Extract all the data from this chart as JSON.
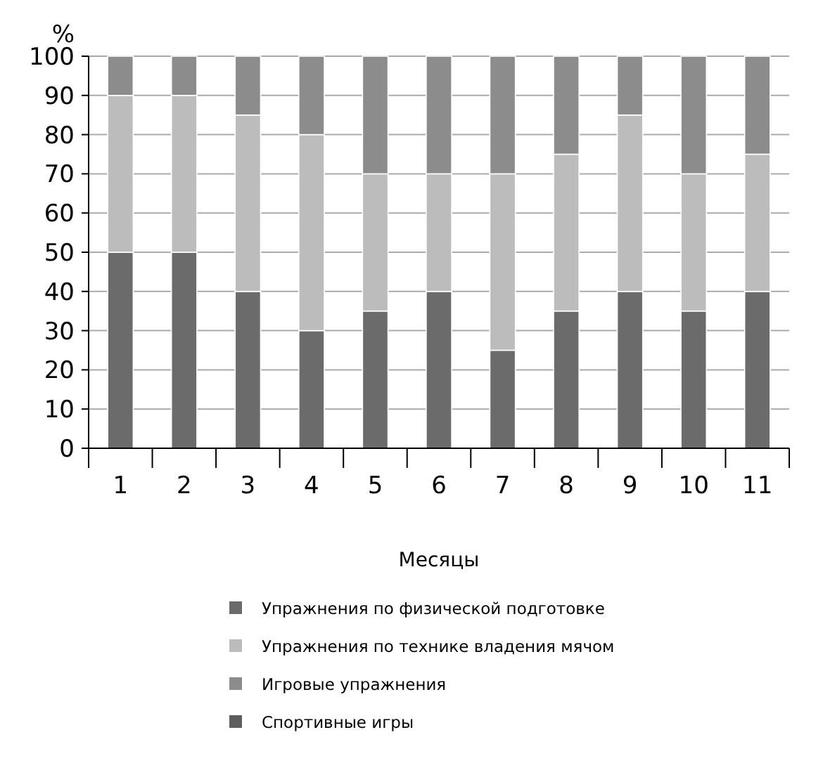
{
  "chart_data": {
    "type": "bar",
    "stacked": true,
    "ylabel": "%",
    "xlabel": "Месяцы",
    "categories": [
      "1",
      "2",
      "3",
      "4",
      "5",
      "6",
      "7",
      "8",
      "9",
      "10",
      "11"
    ],
    "ylim": [
      0,
      100
    ],
    "yticks": [
      0,
      10,
      20,
      30,
      40,
      50,
      60,
      70,
      80,
      90,
      100
    ],
    "grid": "y",
    "legend": "bottom",
    "series": [
      {
        "name": "Упражнения по физической подготовке",
        "color": "#6b6b6b",
        "values": [
          50,
          50,
          40,
          30,
          35,
          40,
          25,
          35,
          40,
          35,
          40
        ]
      },
      {
        "name": "Упражнения по технике владения мячом",
        "color": "#bcbcbc",
        "values": [
          40,
          40,
          45,
          50,
          35,
          30,
          45,
          40,
          45,
          35,
          35
        ]
      },
      {
        "name": "Игровые упражнения",
        "color": "#8c8c8c",
        "values": [
          10,
          10,
          15,
          20,
          30,
          30,
          30,
          25,
          15,
          30,
          25
        ]
      },
      {
        "name": "Спортивные игры",
        "color": "#5e5e5e",
        "values": [
          0,
          0,
          0,
          0,
          0,
          0,
          0,
          0,
          0,
          0,
          0
        ]
      }
    ]
  }
}
